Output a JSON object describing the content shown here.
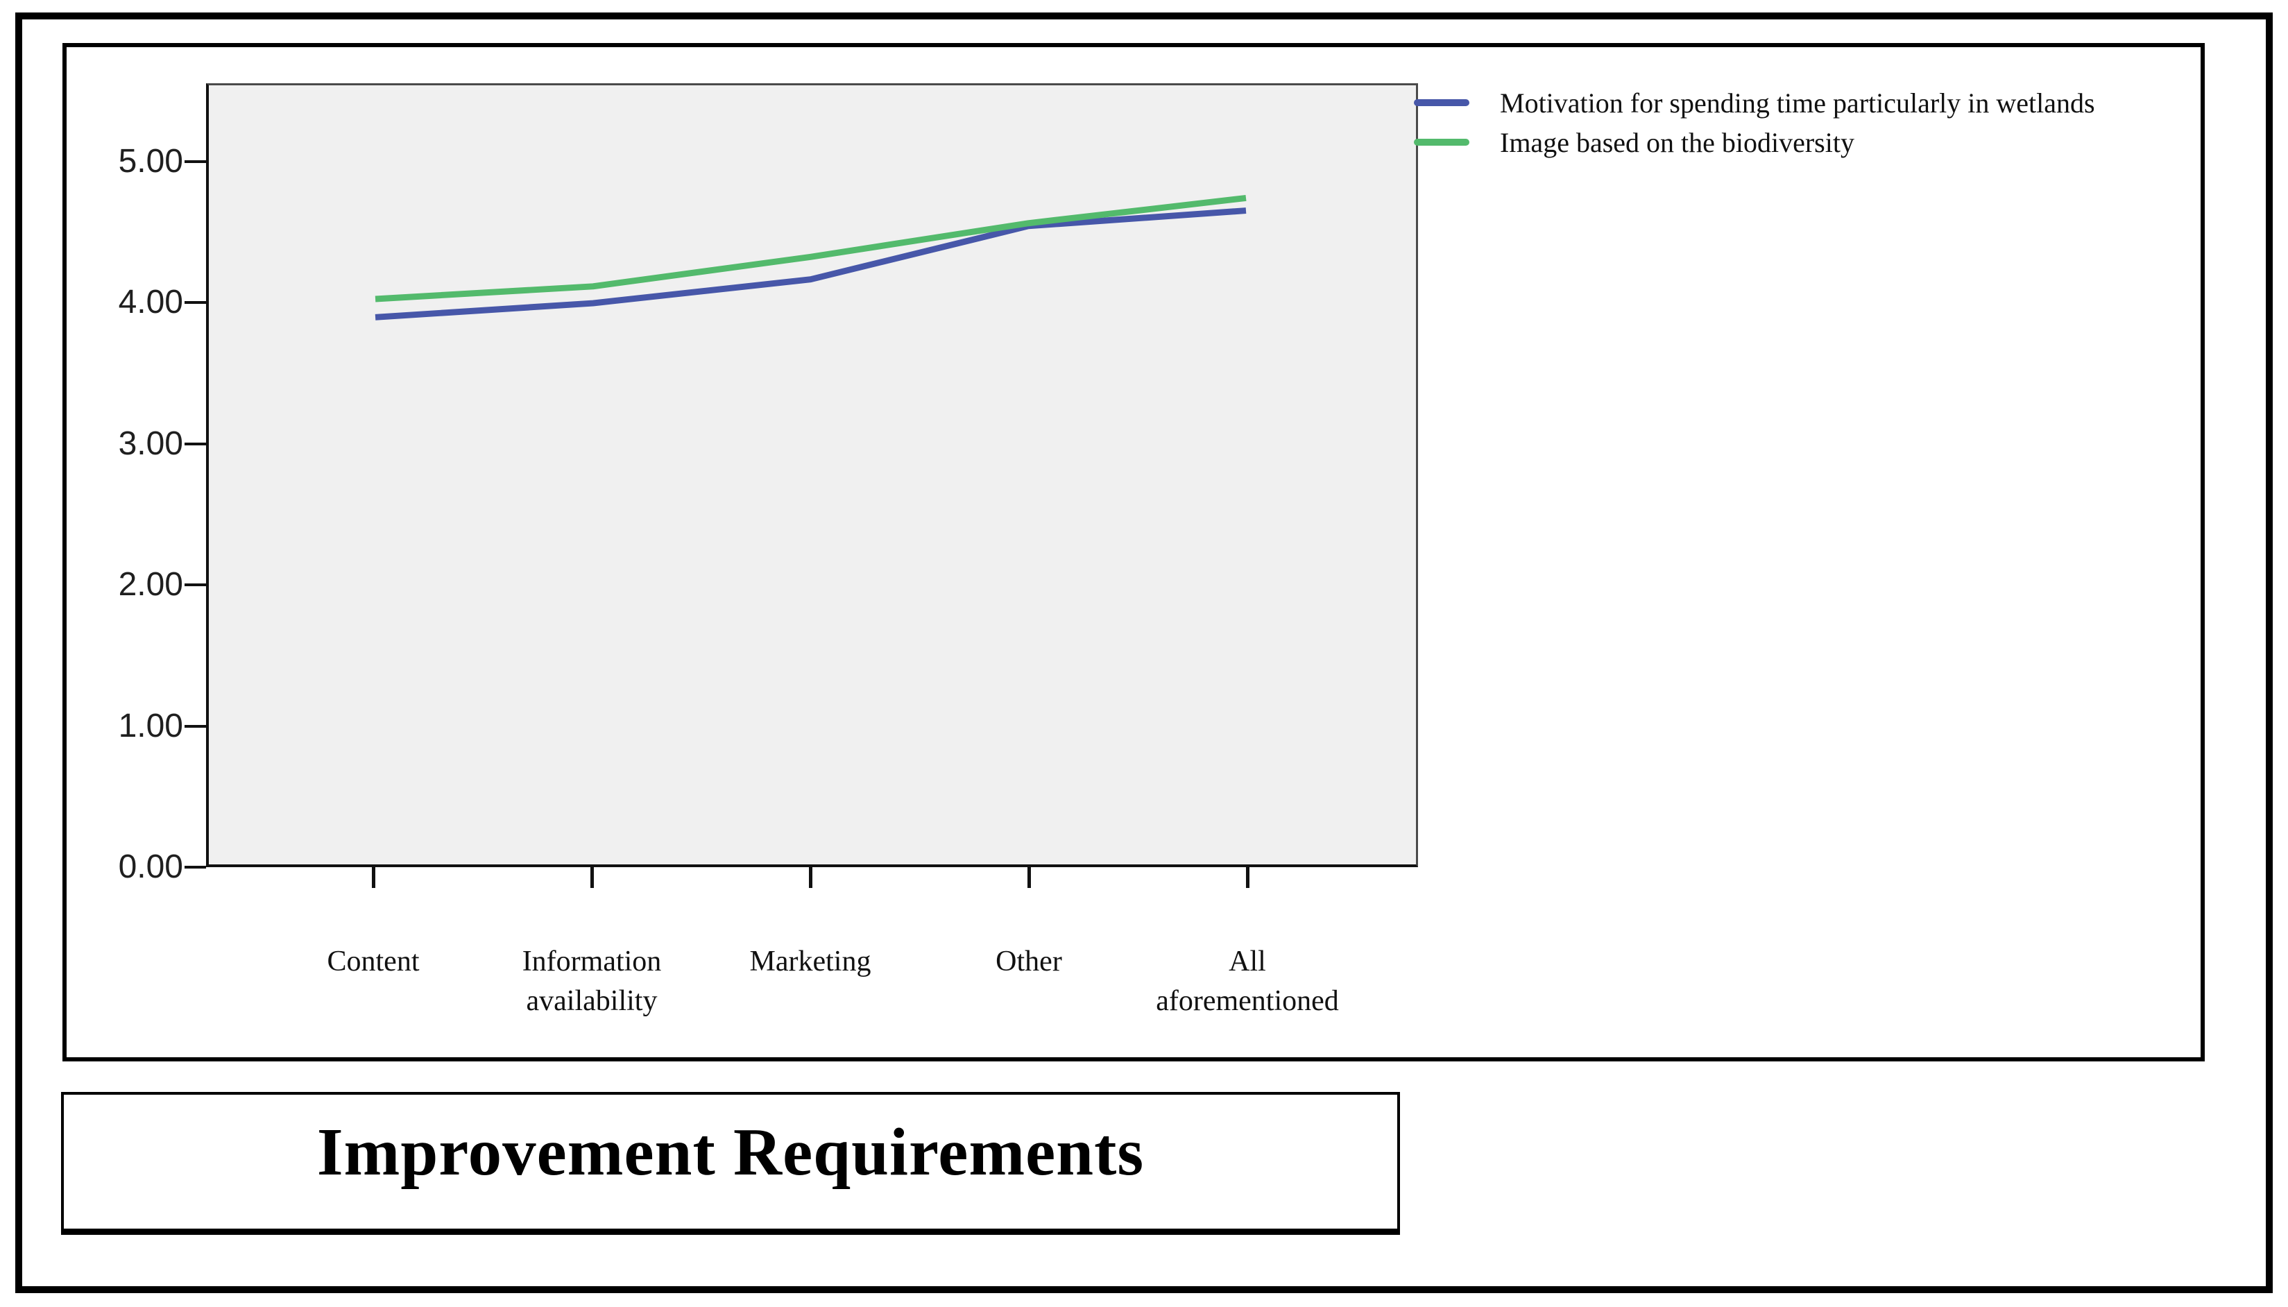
{
  "chart_data": {
    "type": "line",
    "title": "Improvement Requirements",
    "categories": [
      "Content",
      "Information availability",
      "Marketing",
      "Other",
      "All aforementioned"
    ],
    "series": [
      {
        "name": "Motivation for spending time particularly in wetlands",
        "color": "#4757a9",
        "values": [
          3.9,
          4.0,
          4.17,
          4.55,
          4.66
        ]
      },
      {
        "name": "Image based on the biodiversity",
        "color": "#53ba6c",
        "values": [
          4.03,
          4.12,
          4.33,
          4.57,
          4.75
        ]
      }
    ],
    "y_ticks": [
      "0.00",
      "1.00",
      "2.00",
      "3.00",
      "4.00",
      "5.00"
    ],
    "ylim": [
      0,
      5.55
    ],
    "xlabel": "",
    "ylabel": "",
    "grid": false,
    "legend_position": "top-right",
    "plot_background": "#f0f0f0"
  }
}
